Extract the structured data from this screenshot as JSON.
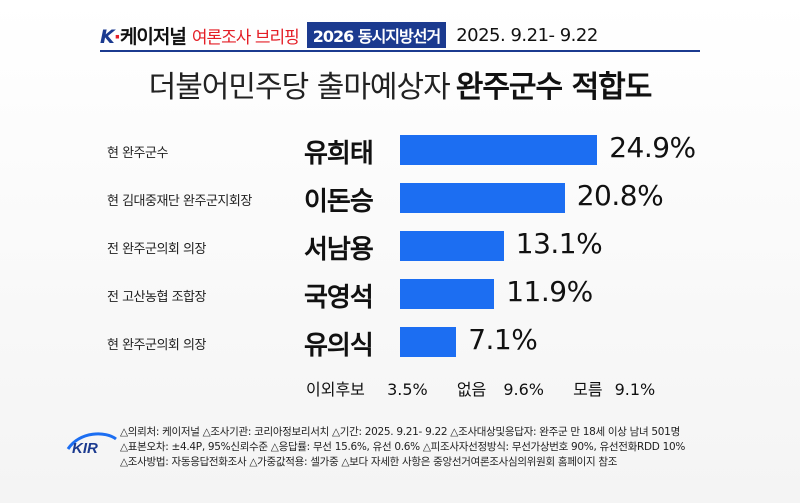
{
  "header": {
    "logo_k": "K",
    "logo_dot": "·",
    "logo_text": "케이저널",
    "brief": "여론조사 브리핑",
    "election": "2026 동시지방선거",
    "dates": "2025. 9.21- 9.22"
  },
  "title": {
    "lead": "더불어민주당 출마예상자",
    "strong": "완주군수 적합도"
  },
  "chart_data": {
    "type": "bar",
    "orientation": "horizontal",
    "categories": [
      "유희태",
      "이돈승",
      "서남용",
      "국영석",
      "유의식"
    ],
    "positions": [
      "현 완주군수",
      "현 김대중재단 완주군지회장",
      "전 완주군의회 의장",
      "전 고산농협 조합장",
      "현 완주군의회 의장"
    ],
    "values": [
      24.9,
      20.8,
      13.1,
      11.9,
      7.1
    ],
    "value_labels": [
      "24.9%",
      "20.8%",
      "13.1%",
      "11.9%",
      "7.1%"
    ],
    "unit": "%",
    "xlim": [
      0,
      100
    ],
    "bar_color": "#1c6ef2",
    "others": [
      {
        "label": "이외후보",
        "value": "3.5%"
      },
      {
        "label": "없음",
        "value": "9.6%"
      },
      {
        "label": "모름",
        "value": "9.1%"
      }
    ]
  },
  "footer": {
    "logo_text": "KIR",
    "lines": [
      "△의뢰처: 케이저널 △조사기관: 코리아정보리서치 △기간: 2025. 9.21- 9.22 △조사대상및응답자: 완주군 만 18세 이상 남녀 501명",
      "△표본오차: ±4.4P, 95%신뢰수준 △응답률: 무선 15.6%, 유선 0.6% △피조사자선정방식: 무선가상번호 90%, 유선전화RDD 10%",
      "△조사방법: 자동응답전화조사 △가중값적용: 셀가중 △보다 자세한 사항은 중앙선거여론조사심의위원회 홈페이지 참조"
    ]
  },
  "colors": {
    "brand_blue": "#1b3a8f",
    "brand_red": "#e41e26",
    "bar": "#1c6ef2"
  }
}
